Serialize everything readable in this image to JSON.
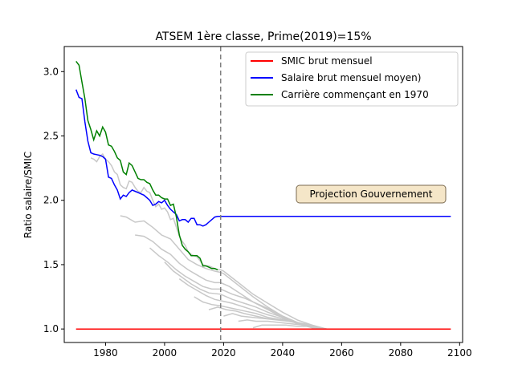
{
  "chart_data": {
    "type": "line",
    "title": "ATSEM 1ère classe, Prime(2019)=15%",
    "xlabel": "",
    "ylabel": "Ratio salaire/SMIC",
    "xlim": [
      1966,
      2101
    ],
    "ylim": [
      0.895,
      3.195
    ],
    "x_ticks": [
      1980,
      2000,
      2020,
      2040,
      2060,
      2080,
      2100
    ],
    "y_ticks": [
      1.0,
      1.5,
      2.0,
      2.5,
      3.0
    ],
    "x_tick_labels": [
      "1980",
      "2000",
      "2020",
      "2040",
      "2060",
      "2080",
      "2100"
    ],
    "y_tick_labels": [
      "1.0",
      "1.5",
      "2.0",
      "2.5",
      "3.0"
    ],
    "grid": false,
    "legend_position": "top-right",
    "reference_line": {
      "x": 2019,
      "style": "dashed",
      "color": "#808080"
    },
    "annotation": {
      "text": "Projection Gouvernement",
      "x": 2073,
      "y": 2.03
    },
    "series": [
      {
        "name": "SMIC brut mensuel",
        "color": "#ff0000",
        "x": [
          1970,
          2097
        ],
        "y": [
          1.0,
          1.0
        ]
      },
      {
        "name": "Salaire brut mensuel moyen)",
        "color": "#0000ff",
        "x": [
          1970,
          1971,
          1972,
          1973,
          1974,
          1975,
          1976,
          1977,
          1978,
          1979,
          1980,
          1981,
          1982,
          1983,
          1984,
          1985,
          1986,
          1987,
          1988,
          1989,
          1990,
          1991,
          1992,
          1993,
          1994,
          1995,
          1996,
          1997,
          1998,
          1999,
          2000,
          2001,
          2002,
          2003,
          2004,
          2005,
          2006,
          2007,
          2008,
          2009,
          2010,
          2011,
          2012,
          2013,
          2014,
          2015,
          2016,
          2017,
          2018,
          2019,
          2097
        ],
        "y": [
          2.86,
          2.8,
          2.79,
          2.61,
          2.46,
          2.37,
          2.36,
          2.355,
          2.35,
          2.34,
          2.32,
          2.18,
          2.17,
          2.12,
          2.08,
          2.01,
          2.04,
          2.03,
          2.06,
          2.08,
          2.07,
          2.06,
          2.05,
          2.04,
          2.02,
          2.0,
          1.96,
          1.97,
          1.99,
          1.98,
          2.0,
          1.96,
          1.93,
          1.91,
          1.89,
          1.84,
          1.85,
          1.85,
          1.83,
          1.86,
          1.86,
          1.81,
          1.81,
          1.8,
          1.81,
          1.83,
          1.85,
          1.87,
          1.875,
          1.875,
          1.875
        ]
      },
      {
        "name": "Carrière commençant en 1970",
        "color": "#008000",
        "x": [
          1970,
          1971,
          1972,
          1973,
          1974,
          1975,
          1976,
          1977,
          1978,
          1979,
          1980,
          1981,
          1982,
          1983,
          1984,
          1985,
          1986,
          1987,
          1988,
          1989,
          1990,
          1991,
          1992,
          1993,
          1994,
          1995,
          1996,
          1997,
          1998,
          1999,
          2000,
          2001,
          2002,
          2003,
          2004,
          2005,
          2006,
          2007,
          2008,
          2009,
          2010,
          2011,
          2012,
          2013,
          2014,
          2015,
          2016,
          2017,
          2018
        ],
        "y": [
          3.08,
          3.05,
          2.92,
          2.79,
          2.62,
          2.55,
          2.47,
          2.54,
          2.5,
          2.57,
          2.53,
          2.43,
          2.42,
          2.38,
          2.33,
          2.31,
          2.22,
          2.2,
          2.29,
          2.27,
          2.22,
          2.17,
          2.16,
          2.16,
          2.14,
          2.13,
          2.08,
          2.04,
          2.04,
          2.02,
          2.01,
          2.01,
          1.96,
          1.97,
          1.87,
          1.73,
          1.65,
          1.62,
          1.6,
          1.57,
          1.57,
          1.57,
          1.55,
          1.49,
          1.49,
          1.48,
          1.47,
          1.47,
          1.46
        ]
      }
    ],
    "other_careers": [
      {
        "color": "#c8c8c8",
        "x": [
          1975,
          1976,
          1977,
          1978,
          1979,
          1980,
          1981,
          1982,
          1983,
          1984,
          1985,
          1986,
          1987,
          1988,
          1989,
          1990,
          1991,
          1992,
          1993,
          1994,
          1995,
          1996,
          1997,
          1998,
          1999,
          2000,
          2001,
          2002,
          2003,
          2004,
          2005,
          2006,
          2007,
          2008,
          2009,
          2010,
          2011,
          2012,
          2013,
          2014,
          2015,
          2016,
          2017,
          2018,
          2019,
          2020,
          2025,
          2030,
          2035,
          2040,
          2045,
          2050,
          2055,
          2060
        ],
        "y": [
          2.33,
          2.32,
          2.3,
          2.34,
          2.36,
          2.32,
          2.3,
          2.27,
          2.22,
          2.2,
          2.12,
          2.1,
          2.09,
          2.15,
          2.14,
          2.1,
          2.07,
          2.06,
          2.1,
          2.07,
          2.06,
          2.0,
          1.95,
          1.97,
          1.93,
          1.94,
          1.91,
          1.85,
          1.86,
          1.79,
          1.72,
          1.68,
          1.65,
          1.6,
          1.58,
          1.57,
          1.56,
          1.53,
          1.5,
          1.49,
          1.49,
          1.48,
          1.47,
          1.46,
          1.46,
          1.45,
          1.36,
          1.27,
          1.2,
          1.13,
          1.07,
          1.03,
          1.0,
          1.0
        ]
      },
      {
        "color": "#c8c8c8",
        "x": [
          1985,
          1987,
          1990,
          1993,
          1996,
          1999,
          2002,
          2005,
          2008,
          2011,
          2014,
          2017,
          2019,
          2020,
          2025,
          2030,
          2035,
          2040,
          2045,
          2050,
          2055
        ],
        "y": [
          1.88,
          1.87,
          1.83,
          1.84,
          1.79,
          1.73,
          1.7,
          1.62,
          1.54,
          1.5,
          1.47,
          1.45,
          1.44,
          1.43,
          1.34,
          1.25,
          1.17,
          1.1,
          1.05,
          1.01,
          1.0
        ]
      },
      {
        "color": "#c8c8c8",
        "x": [
          1990,
          1993,
          1996,
          1999,
          2002,
          2005,
          2008,
          2011,
          2014,
          2017,
          2019,
          2022,
          2026,
          2030,
          2035,
          2040,
          2045,
          2050,
          2054
        ],
        "y": [
          1.73,
          1.72,
          1.68,
          1.62,
          1.58,
          1.51,
          1.46,
          1.42,
          1.38,
          1.36,
          1.36,
          1.33,
          1.27,
          1.21,
          1.15,
          1.09,
          1.04,
          1.01,
          1.0
        ]
      },
      {
        "color": "#c8c8c8",
        "x": [
          1995,
          1998,
          2001,
          2004,
          2007,
          2010,
          2013,
          2016,
          2019,
          2023,
          2027,
          2031,
          2035,
          2040,
          2045,
          2050,
          2054
        ],
        "y": [
          1.63,
          1.57,
          1.52,
          1.46,
          1.41,
          1.37,
          1.33,
          1.31,
          1.31,
          1.27,
          1.24,
          1.2,
          1.16,
          1.1,
          1.05,
          1.02,
          1.0
        ]
      },
      {
        "color": "#c8c8c8",
        "x": [
          2000,
          2003,
          2006,
          2009,
          2012,
          2015,
          2019,
          2023,
          2027,
          2031,
          2035,
          2040,
          2045,
          2050,
          2054
        ],
        "y": [
          1.52,
          1.45,
          1.4,
          1.35,
          1.31,
          1.28,
          1.27,
          1.23,
          1.2,
          1.17,
          1.13,
          1.09,
          1.05,
          1.02,
          1.0
        ]
      },
      {
        "color": "#c8c8c8",
        "x": [
          2005,
          2008,
          2011,
          2014,
          2017,
          2019,
          2023,
          2027,
          2031,
          2035,
          2040,
          2045,
          2050,
          2054
        ],
        "y": [
          1.39,
          1.34,
          1.3,
          1.26,
          1.23,
          1.22,
          1.2,
          1.17,
          1.14,
          1.11,
          1.08,
          1.05,
          1.02,
          1.0
        ]
      },
      {
        "color": "#c8c8c8",
        "x": [
          2010,
          2013,
          2016,
          2019,
          2023,
          2027,
          2031,
          2035,
          2040,
          2045,
          2050,
          2054
        ],
        "y": [
          1.25,
          1.21,
          1.19,
          1.18,
          1.16,
          1.14,
          1.12,
          1.09,
          1.07,
          1.05,
          1.02,
          1.0
        ]
      },
      {
        "color": "#c8c8c8",
        "x": [
          2015,
          2018,
          2021,
          2024,
          2027,
          2031,
          2035,
          2040,
          2045,
          2050,
          2054
        ],
        "y": [
          1.15,
          1.17,
          1.15,
          1.14,
          1.12,
          1.1,
          1.08,
          1.07,
          1.05,
          1.03,
          1.0
        ]
      },
      {
        "color": "#c8c8c8",
        "x": [
          2020,
          2023,
          2026,
          2030,
          2034,
          2038,
          2042,
          2046,
          2050,
          2054
        ],
        "y": [
          1.1,
          1.12,
          1.1,
          1.09,
          1.08,
          1.07,
          1.06,
          1.04,
          1.02,
          1.0
        ]
      },
      {
        "color": "#c8c8c8",
        "x": [
          2025,
          2028,
          2031,
          2035,
          2039,
          2043,
          2047,
          2051,
          2054
        ],
        "y": [
          1.06,
          1.07,
          1.06,
          1.06,
          1.05,
          1.04,
          1.03,
          1.02,
          1.0
        ]
      },
      {
        "color": "#c8c8c8",
        "x": [
          2030,
          2033,
          2037,
          2041,
          2045,
          2049,
          2053
        ],
        "y": [
          1.01,
          1.03,
          1.03,
          1.03,
          1.02,
          1.02,
          1.01
        ]
      }
    ]
  }
}
